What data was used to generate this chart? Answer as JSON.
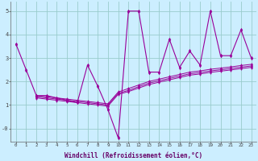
{
  "xlabel": "Windchill (Refroidissement éolien,°C)",
  "bg_color": "#cceeff",
  "grid_color": "#99cccc",
  "line_color": "#990099",
  "xlim": [
    -0.5,
    23.5
  ],
  "ylim": [
    -0.55,
    5.4
  ],
  "x_ticks": [
    0,
    1,
    2,
    3,
    4,
    5,
    6,
    7,
    8,
    9,
    10,
    11,
    12,
    13,
    14,
    15,
    16,
    17,
    18,
    19,
    20,
    21,
    22,
    23
  ],
  "y_ticks": [
    0,
    1,
    2,
    3,
    4,
    5
  ],
  "y_labels": [
    "-0",
    "1",
    "2",
    "3",
    "4",
    "5"
  ],
  "series1_x": [
    0,
    1,
    2,
    3,
    4,
    5,
    6,
    7,
    8,
    9,
    10,
    11,
    12,
    13,
    14,
    15,
    16,
    17,
    18,
    19,
    20,
    21,
    22,
    23
  ],
  "series1_y": [
    3.6,
    2.5,
    1.4,
    1.4,
    1.3,
    1.2,
    1.1,
    2.7,
    1.8,
    0.8,
    -0.4,
    5.0,
    5.0,
    2.4,
    2.4,
    3.8,
    2.6,
    3.3,
    2.7,
    5.0,
    3.1,
    3.1,
    4.2,
    3.0
  ],
  "series2_x": [
    2,
    3,
    4,
    5,
    6,
    7,
    8,
    9,
    10,
    11,
    12,
    13,
    14,
    15,
    16,
    17,
    18,
    19,
    20,
    21,
    22,
    23
  ],
  "series2_y": [
    1.4,
    1.35,
    1.3,
    1.25,
    1.2,
    1.15,
    1.1,
    1.05,
    1.55,
    1.7,
    1.85,
    2.0,
    2.1,
    2.2,
    2.3,
    2.4,
    2.45,
    2.52,
    2.57,
    2.62,
    2.68,
    2.73
  ],
  "series3_x": [
    2,
    3,
    4,
    5,
    6,
    7,
    8,
    9,
    10,
    11,
    12,
    13,
    14,
    15,
    16,
    17,
    18,
    19,
    20,
    21,
    22,
    23
  ],
  "series3_y": [
    1.35,
    1.3,
    1.25,
    1.2,
    1.15,
    1.1,
    1.05,
    1.0,
    1.5,
    1.62,
    1.78,
    1.93,
    2.03,
    2.13,
    2.23,
    2.33,
    2.38,
    2.45,
    2.5,
    2.55,
    2.61,
    2.66
  ],
  "series4_x": [
    2,
    3,
    4,
    5,
    6,
    7,
    8,
    9,
    10,
    11,
    12,
    13,
    14,
    15,
    16,
    17,
    18,
    19,
    20,
    21,
    22,
    23
  ],
  "series4_y": [
    1.3,
    1.25,
    1.2,
    1.15,
    1.1,
    1.05,
    1.0,
    0.95,
    1.45,
    1.57,
    1.72,
    1.87,
    1.97,
    2.07,
    2.17,
    2.27,
    2.32,
    2.39,
    2.44,
    2.49,
    2.55,
    2.6
  ]
}
